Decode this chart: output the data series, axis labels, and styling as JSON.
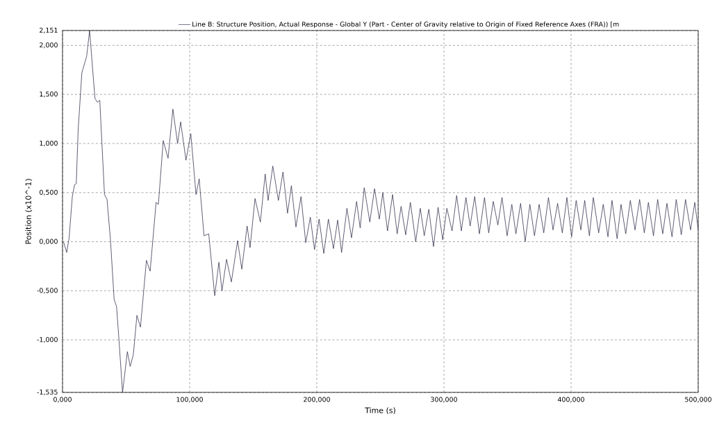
{
  "chart_data": {
    "type": "line",
    "xlabel": "Time (s)",
    "ylabel": "Position (x10^-1)",
    "xlim": [
      0,
      500
    ],
    "ylim": [
      -1.535,
      2.151
    ],
    "xticks": [
      {
        "value": 0,
        "label": "0,000"
      },
      {
        "value": 100,
        "label": "100,000"
      },
      {
        "value": 200,
        "label": "200,000"
      },
      {
        "value": 300,
        "label": "300,000"
      },
      {
        "value": 400,
        "label": "400,000"
      },
      {
        "value": 500,
        "label": "500,000"
      }
    ],
    "yticks": [
      {
        "value": -1.535,
        "label": "-1,535"
      },
      {
        "value": -1,
        "label": "-1,000"
      },
      {
        "value": -0.5,
        "label": "-0,500"
      },
      {
        "value": 0,
        "label": "0,000"
      },
      {
        "value": 0.5,
        "label": "0,500"
      },
      {
        "value": 1,
        "label": "1,000"
      },
      {
        "value": 1.5,
        "label": "1,500"
      },
      {
        "value": 2,
        "label": "2,000"
      },
      {
        "value": 2.151,
        "label": "2,151"
      }
    ],
    "grid": true,
    "legend": "top",
    "marker": "none",
    "line_style": "solid",
    "x": [
      0,
      1,
      3.3,
      5.2,
      7.7,
      9.5,
      10.8,
      12.3,
      15.2,
      19,
      21.3,
      22.7,
      25.5,
      27.3,
      29.3,
      33,
      35,
      37.7,
      40.6,
      42.5,
      44.4,
      47.2,
      51,
      53.2,
      55.7,
      58.5,
      61.3,
      66,
      68.9,
      73.6,
      75.4,
      79.2,
      83,
      86.8,
      90.5,
      92.9,
      97.1,
      100.9,
      105,
      107.5,
      111.3,
      115,
      119.7,
      123,
      125.4,
      129,
      132.8,
      137.7,
      141,
      145.2,
      147.5,
      151.4,
      155.6,
      159.4,
      161.7,
      165.4,
      169.8,
      173.4,
      177,
      180,
      183.6,
      187.6,
      191.3,
      194.9,
      198.2,
      201.8,
      205.5,
      209.1,
      213.1,
      216.4,
      219.5,
      223.7,
      227.3,
      231.3,
      234.1,
      237.3,
      241.7,
      245.4,
      249.2,
      251.9,
      255.6,
      259.6,
      263.2,
      266.3,
      269.9,
      273.6,
      277.8,
      281.4,
      284.5,
      288.1,
      291.8,
      295.4,
      299,
      302.3,
      306.4,
      310,
      313.7,
      317.3,
      320.6,
      324.2,
      327.9,
      331.9,
      335.2,
      338.8,
      342.4,
      345.7,
      349.7,
      353.4,
      356.6,
      360.3,
      363.9,
      367.6,
      371.2,
      374.9,
      378.5,
      382.2,
      385.8,
      389.4,
      393.1,
      396.7,
      400.4,
      404,
      407.7,
      410.7,
      414.4,
      417.5,
      421.7,
      425.3,
      429,
      432.2,
      436.2,
      439.3,
      443,
      446.6,
      450.3,
      453.9,
      457.6,
      460.8,
      464.8,
      468.1,
      472.1,
      475.4,
      479.4,
      482.7,
      486.7,
      490,
      494,
      497.3,
      500
    ],
    "series": [
      {
        "name": "Line B: Structure Position, Actual Response - Global Y (Part - Center of Gravity relative to Origin of Fixed Reference Axes (FRA)) [m",
        "color": "#1a1a3a",
        "values": [
          0,
          -0.01,
          -0.11,
          0.04,
          0.46,
          0.58,
          0.59,
          1.14,
          1.72,
          1.89,
          2.151,
          1.92,
          1.46,
          1.42,
          1.44,
          0.48,
          0.43,
          0.02,
          -0.59,
          -0.66,
          -1.0,
          -1.535,
          -1.12,
          -1.27,
          -1.15,
          -0.75,
          -0.87,
          -0.19,
          -0.3,
          0.4,
          0.38,
          1.03,
          0.85,
          1.35,
          1.0,
          1.22,
          0.83,
          1.1,
          0.48,
          0.64,
          0.06,
          0.08,
          -0.55,
          -0.21,
          -0.5,
          -0.18,
          -0.41,
          0.01,
          -0.28,
          0.16,
          -0.06,
          0.44,
          0.2,
          0.69,
          0.42,
          0.77,
          0.42,
          0.71,
          0.29,
          0.57,
          0.15,
          0.46,
          -0.01,
          0.25,
          -0.08,
          0.23,
          -0.12,
          0.23,
          -0.07,
          0.22,
          -0.11,
          0.34,
          0.04,
          0.41,
          0.14,
          0.55,
          0.2,
          0.54,
          0.23,
          0.5,
          0.11,
          0.48,
          0.08,
          0.36,
          0.07,
          0.4,
          0.0,
          0.34,
          0.06,
          0.33,
          -0.05,
          0.35,
          0.02,
          0.34,
          0.11,
          0.47,
          0.11,
          0.45,
          0.16,
          0.46,
          0.08,
          0.45,
          0.09,
          0.41,
          0.17,
          0.45,
          0.06,
          0.38,
          0.08,
          0.39,
          0.0,
          0.38,
          0.06,
          0.38,
          0.09,
          0.45,
          0.12,
          0.39,
          0.09,
          0.45,
          0.05,
          0.42,
          0.12,
          0.42,
          0.06,
          0.45,
          0.09,
          0.38,
          0.05,
          0.42,
          0.03,
          0.38,
          0.08,
          0.42,
          0.12,
          0.43,
          0.09,
          0.4,
          0.06,
          0.43,
          0.08,
          0.39,
          0.05,
          0.43,
          0.07,
          0.43,
          0.12,
          0.4,
          0.12
        ]
      }
    ]
  }
}
